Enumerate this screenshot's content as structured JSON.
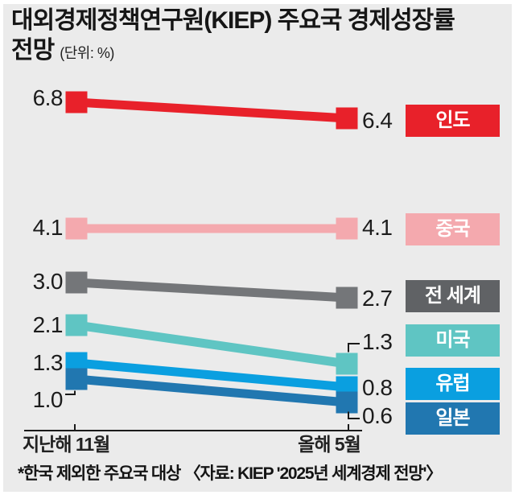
{
  "title": {
    "line1": "대외경제정책연구원(KIEP) 주요국 경제성장률",
    "line2": "전망",
    "unit": "(단위: %)"
  },
  "chart_data": {
    "type": "line",
    "subtype": "slope-chart",
    "x_labels": [
      "지난해 11월",
      "올해 5월"
    ],
    "unit": "%",
    "series": [
      {
        "key": "india",
        "name": "인도",
        "values": [
          6.8,
          6.4
        ],
        "color": "#e8212a",
        "label_bg": "#e8212a"
      },
      {
        "key": "china",
        "name": "중국",
        "values": [
          4.1,
          4.1
        ],
        "color": "#f4a9ae",
        "label_bg": "#f4a9ae"
      },
      {
        "key": "world",
        "name": "전 세계",
        "values": [
          3.0,
          2.7
        ],
        "color": "#747679",
        "label_bg": "#606265"
      },
      {
        "key": "usa",
        "name": "미국",
        "values": [
          2.1,
          1.3
        ],
        "color": "#5fc5c3",
        "label_bg": "#5fc5c3"
      },
      {
        "key": "europe",
        "name": "유럽",
        "values": [
          1.3,
          0.8
        ],
        "color": "#0a9fe0",
        "label_bg": "#0a9fe0"
      },
      {
        "key": "japan",
        "name": "일본",
        "values": [
          1.0,
          0.6
        ],
        "color": "#2177b0",
        "label_bg": "#2177b0"
      }
    ],
    "legend_position": "right",
    "grid": false
  },
  "footnote": "*한국 제외한 주요국 대상 〈자료: KIEP '2025년 세계경제 전망'〉",
  "colors": {
    "background": "#ebebeb",
    "text": "#1c1c1c",
    "axis": "#1a1a1a"
  }
}
